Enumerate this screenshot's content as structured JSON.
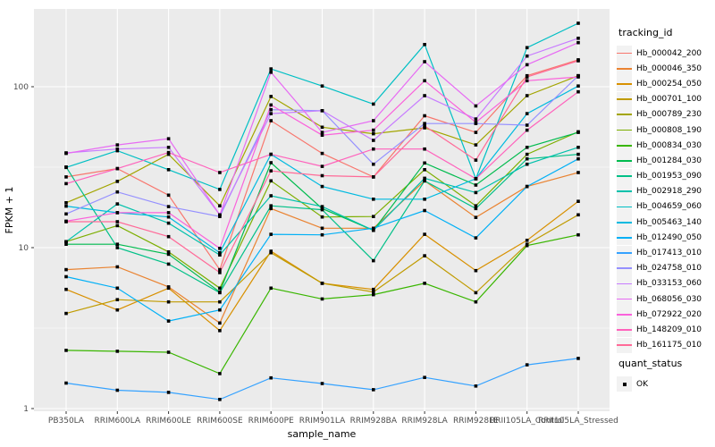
{
  "chart_data": {
    "type": "line",
    "title": "",
    "xlabel": "sample_name",
    "ylabel": "FPKM + 1",
    "y_scale": "log10",
    "y_ticks": [
      1,
      10,
      100
    ],
    "y_minor_ticks": [
      3.162,
      31.62
    ],
    "ylim": [
      0.96,
      305
    ],
    "grid": "on",
    "panel_background": "#EBEBEB",
    "grid_color": "#FFFFFF",
    "tick_label_color": "#4D4D4D",
    "axis_title_color": "#000000",
    "point_shape": "black-square",
    "legend_title": "tracking_id",
    "quant_legend": {
      "title": "quant_status",
      "items": [
        {
          "label": "OK"
        }
      ]
    },
    "categories": [
      "PB350LA",
      "RRIM600LA",
      "RRIM600LE",
      "RRIM600SE",
      "RRIM600PE",
      "RRIM901LA",
      "RRIM928BA",
      "RRIM928LA",
      "RRIM928LE",
      "RRII105LA_Control",
      "RRII105LA_Stressed"
    ],
    "series": [
      {
        "name": "Hb_000042_200",
        "color": "#F8766D",
        "values": [
          27.5,
          31,
          21.2,
          7.3,
          61.5,
          38.5,
          27.5,
          66,
          52,
          117,
          147
        ]
      },
      {
        "name": "Hb_000046_350",
        "color": "#EA8331",
        "values": [
          7.3,
          7.6,
          5.7,
          3.4,
          17.5,
          13.2,
          13.2,
          26,
          15.4,
          24,
          29.3
        ]
      },
      {
        "name": "Hb_000254_050",
        "color": "#D89000",
        "values": [
          5.5,
          4.1,
          5.6,
          3.05,
          9.5,
          6.0,
          5.5,
          12.1,
          7.2,
          11.1,
          19.4
        ]
      },
      {
        "name": "Hb_000701_100",
        "color": "#C09B00",
        "values": [
          3.9,
          4.75,
          4.6,
          4.6,
          9.3,
          6.0,
          5.3,
          8.9,
          5.25,
          10.5,
          16
        ]
      },
      {
        "name": "Hb_000789_230",
        "color": "#A3A500",
        "values": [
          19,
          25.8,
          38,
          18.2,
          87,
          56,
          51,
          55.5,
          43.5,
          88,
          117
        ]
      },
      {
        "name": "Hb_000808_190",
        "color": "#7CAE00",
        "values": [
          10.9,
          13.7,
          9.4,
          5.6,
          26,
          15.5,
          15.6,
          30.5,
          18.2,
          38,
          52.5
        ]
      },
      {
        "name": "Hb_000834_030",
        "color": "#39B600",
        "values": [
          2.3,
          2.27,
          2.24,
          1.65,
          5.6,
          4.8,
          5.1,
          6.0,
          4.6,
          10.3,
          12.0
        ]
      },
      {
        "name": "Hb_001284_030",
        "color": "#00BB4E",
        "values": [
          10.5,
          10.5,
          9.1,
          5.3,
          33.7,
          17.5,
          12.8,
          33.6,
          24.5,
          42,
          52
        ]
      },
      {
        "name": "Hb_001953_090",
        "color": "#00C087",
        "values": [
          31.7,
          10.0,
          7.9,
          5.25,
          18.2,
          17.2,
          8.3,
          26,
          17.5,
          35.6,
          38
        ]
      },
      {
        "name": "Hb_002918_290",
        "color": "#00C1AB",
        "values": [
          10.9,
          18.7,
          14.2,
          9.0,
          21,
          18,
          12.8,
          27,
          22,
          33,
          42
        ]
      },
      {
        "name": "Hb_004659_060",
        "color": "#00BFC4",
        "values": [
          31.5,
          40,
          30.5,
          23,
          129,
          101,
          78,
          183,
          26.8,
          175,
          248
        ]
      },
      {
        "name": "Hb_005463_140",
        "color": "#00BAE0",
        "values": [
          18.1,
          16.5,
          15.5,
          9.3,
          38,
          24,
          20,
          20,
          26.8,
          68,
          101
        ]
      },
      {
        "name": "Hb_012490_050",
        "color": "#00B0F6",
        "values": [
          6.6,
          5.6,
          3.5,
          4.1,
          12.1,
          12,
          13.2,
          17,
          11.5,
          24,
          35.6
        ]
      },
      {
        "name": "Hb_017413_010",
        "color": "#35A2FF",
        "values": [
          1.44,
          1.3,
          1.26,
          1.14,
          1.55,
          1.43,
          1.31,
          1.56,
          1.38,
          1.87,
          2.05
        ]
      },
      {
        "name": "Hb_024758_010",
        "color": "#9590FF",
        "values": [
          16.2,
          22.2,
          18,
          15.6,
          72,
          71,
          33,
          59,
          59,
          57.7,
          117
        ]
      },
      {
        "name": "Hb_033153_060",
        "color": "#C77CFF",
        "values": [
          38.8,
          41,
          42,
          16,
          68,
          71,
          46.4,
          88,
          63,
          155,
          200
        ]
      },
      {
        "name": "Hb_068056_030",
        "color": "#E76BF3",
        "values": [
          38.5,
          43.5,
          47.5,
          16,
          123,
          52,
          61.5,
          143,
          76,
          137,
          188
        ]
      },
      {
        "name": "Hb_072922_020",
        "color": "#FA62DB",
        "values": [
          14.6,
          16.5,
          16.5,
          9.9,
          77,
          50,
          53.7,
          109,
          60,
          109,
          115
        ]
      },
      {
        "name": "Hb_148209_010",
        "color": "#FF62BC",
        "values": [
          25,
          31,
          39,
          29.3,
          38,
          32,
          41,
          41,
          26.8,
          53.7,
          93
        ]
      },
      {
        "name": "Hb_161175_010",
        "color": "#FF6A98",
        "values": [
          14.5,
          14.5,
          11.7,
          7.0,
          30,
          28,
          27.5,
          57,
          35,
          115,
          145
        ]
      }
    ]
  }
}
